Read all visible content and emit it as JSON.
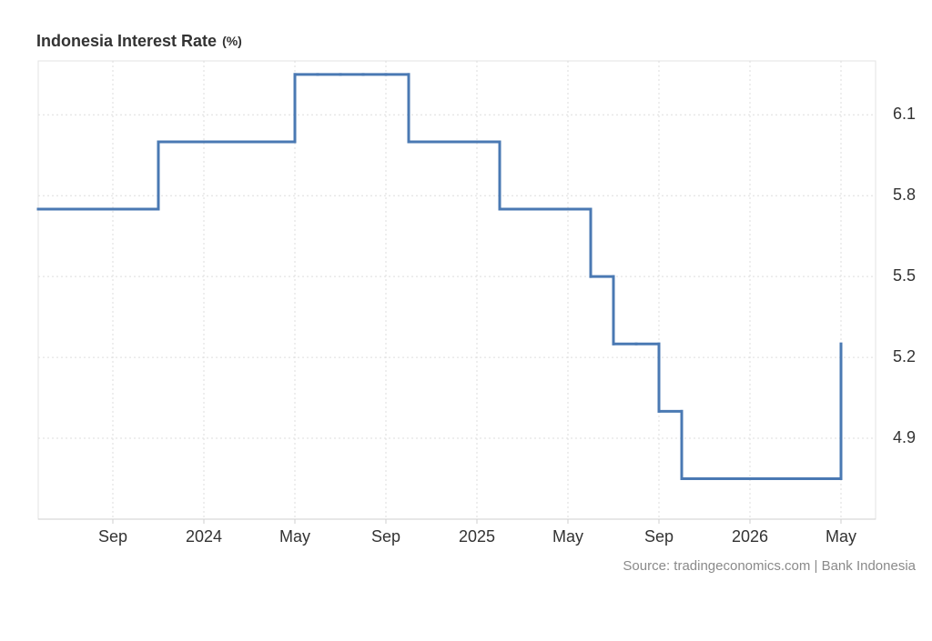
{
  "chart_data": {
    "type": "step-line",
    "title": "Indonesia Interest Rate",
    "unit_label": "(%)",
    "source": "Source: tradingeconomics.com | Bank Indonesia",
    "categories": [
      null,
      null,
      null,
      "Sep",
      null,
      null,
      null,
      "2024",
      null,
      null,
      null,
      "May",
      null,
      null,
      null,
      "Sep",
      null,
      null,
      null,
      "2025",
      null,
      null,
      null,
      "May",
      null,
      null,
      null,
      "Sep",
      null,
      null,
      null,
      "2026",
      null,
      null,
      null,
      "May"
    ],
    "values": [
      5.75,
      5.75,
      5.75,
      5.75,
      5.75,
      6.0,
      6.0,
      6.0,
      6.0,
      6.0,
      6.0,
      6.25,
      6.25,
      6.25,
      6.25,
      6.25,
      6.0,
      6.0,
      6.0,
      6.0,
      5.75,
      5.75,
      5.75,
      5.75,
      5.5,
      5.25,
      5.25,
      5.0,
      4.75,
      4.75,
      4.75,
      4.75,
      4.75,
      4.75,
      4.75,
      5.25
    ],
    "color": "#4a79b3",
    "ylim": [
      4.6,
      6.3
    ],
    "yticks": [
      4.9,
      5.2,
      5.5,
      5.8,
      6.1
    ],
    "grid": true
  }
}
